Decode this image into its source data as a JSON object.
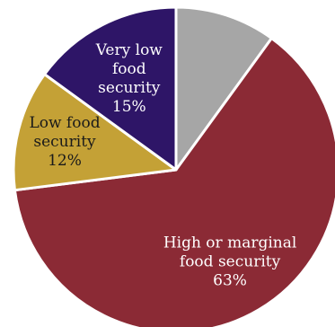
{
  "chart_data": {
    "type": "pie",
    "title": "",
    "start_angle_deg": 0,
    "direction": "clockwise",
    "legend": "none",
    "slices": [
      {
        "label": "",
        "value": 10,
        "color": "#A6A6A6",
        "text_lines": [],
        "text_color": "#FFFFFF"
      },
      {
        "label": "High or marginal food security",
        "value": 63,
        "color": "#8B2A35",
        "text_lines": [
          "High or marginal",
          "food security",
          "63%"
        ],
        "text_color": "#FFFFFF"
      },
      {
        "label": "Low food security",
        "value": 12,
        "color": "#C4A136",
        "text_lines": [
          "Low food",
          "security",
          "12%"
        ],
        "text_color": "#1A1A1A"
      },
      {
        "label": "Very low food security",
        "value": 15,
        "color": "#2E1567",
        "text_lines": [
          "Very low",
          "food",
          "security",
          "15%"
        ],
        "text_color": "#FFFFFF"
      }
    ]
  }
}
